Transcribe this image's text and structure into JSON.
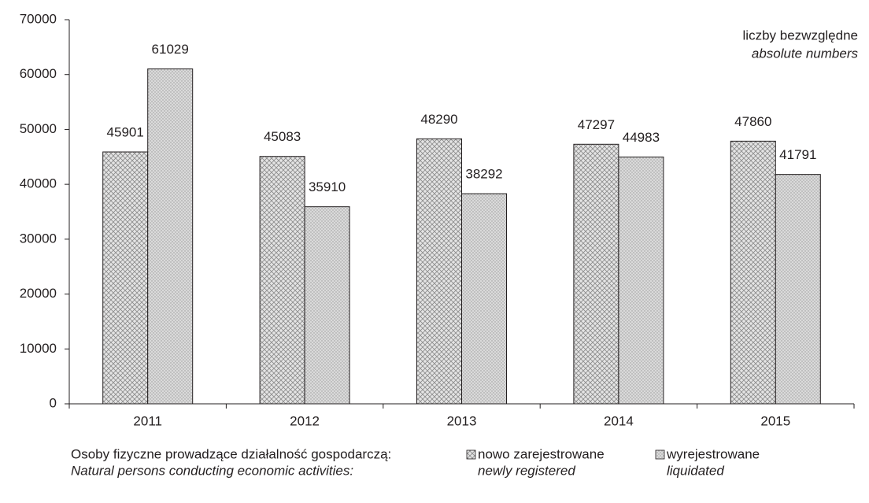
{
  "chart_data": {
    "type": "bar",
    "categories": [
      "2011",
      "2012",
      "2013",
      "2014",
      "2015"
    ],
    "series": [
      {
        "name": "nowo zarejestrowane",
        "name_en": "newly registered",
        "color": "#d0d0d0",
        "pattern": "crosshatch",
        "values": [
          45901,
          45083,
          48290,
          47297,
          47860
        ]
      },
      {
        "name": "wyrejestrowane",
        "name_en": "liquidated",
        "color": "#d6d6d6",
        "pattern": "dots",
        "values": [
          61029,
          35910,
          38292,
          44983,
          41791
        ]
      }
    ],
    "ylim": [
      0,
      70000
    ],
    "yticks": [
      0,
      10000,
      20000,
      30000,
      40000,
      50000,
      60000,
      70000
    ],
    "annotation": "liczby bezwzględne",
    "annotation_en": "absolute numbers",
    "legend_title": "Osoby fizyczne prowadzące działalność gospodarczą:",
    "legend_title_en": "Natural persons conducting economic activities:"
  }
}
